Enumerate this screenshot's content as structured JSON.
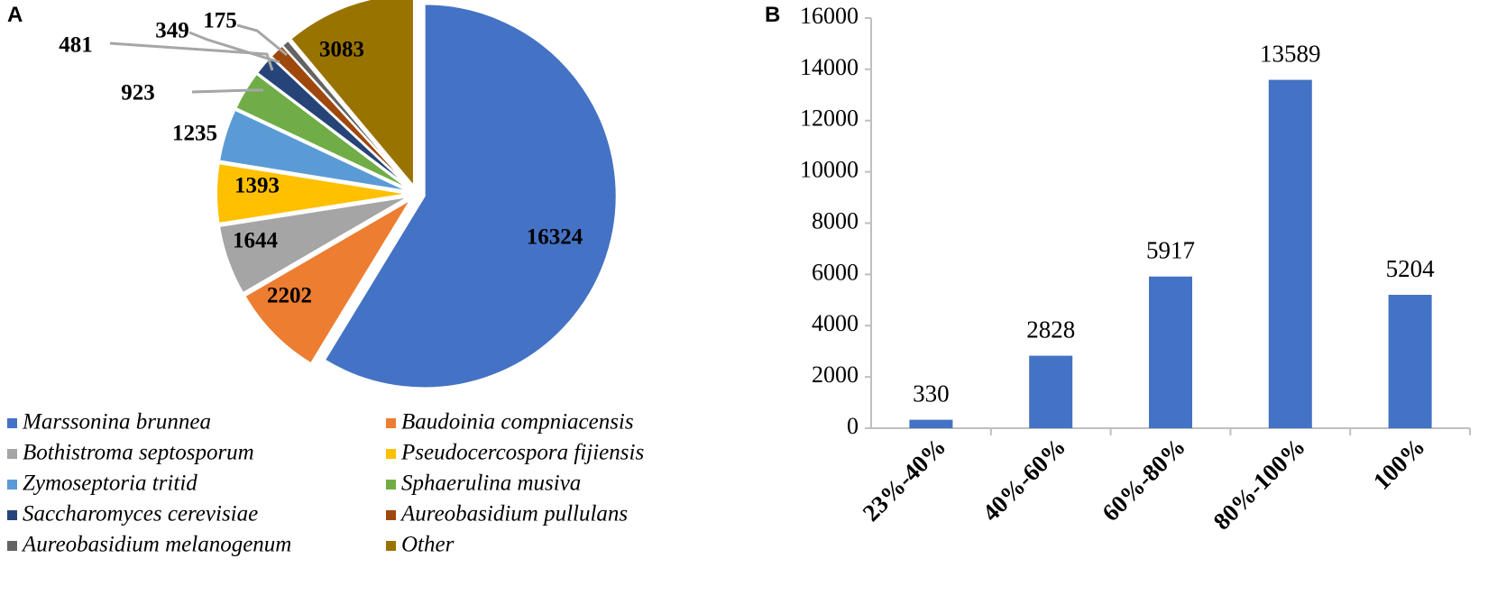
{
  "panels": {
    "left_letter": "A",
    "right_letter": "B"
  },
  "chart_data": [
    {
      "type": "pie",
      "title": "",
      "slices": [
        {
          "label": "Marssonina brunnea",
          "value": 16324,
          "value_label": "16324",
          "color": "#4472C4"
        },
        {
          "label": "Baudoinia compniacensis",
          "value": 2202,
          "value_label": "2202",
          "color": "#ED7D31"
        },
        {
          "label": "Bothistroma septosporum",
          "value": 1644,
          "value_label": "1644",
          "color": "#A5A5A5"
        },
        {
          "label": "Pseudocercospora fijiensis",
          "value": 1393,
          "value_label": "1393",
          "color": "#FFC000"
        },
        {
          "label": "Zymoseptoria tritid",
          "value": 1235,
          "value_label": "1235",
          "color": "#5B9BD5"
        },
        {
          "label": "Sphaerulina musiva",
          "value": 923,
          "value_label": "923",
          "color": "#70AD47"
        },
        {
          "label": "Saccharomyces cerevisiae",
          "value": 481,
          "value_label": "481",
          "color": "#264478"
        },
        {
          "label": "Aureobasidium pullulans",
          "value": 349,
          "value_label": "349",
          "color": "#9E480E"
        },
        {
          "label": "Aureobasidium melanogenum",
          "value": 175,
          "value_label": "175",
          "color": "#636363"
        },
        {
          "label": "Other",
          "value": 3083,
          "value_label": "3083",
          "color": "#997300"
        }
      ],
      "legend_position": "bottom",
      "exploded": true
    },
    {
      "type": "bar",
      "title": "",
      "xlabel": "",
      "ylabel": "",
      "categories": [
        "23%-40%",
        "40%-60%",
        "60%-80%",
        "80%-100%",
        "100%"
      ],
      "values": [
        330,
        2828,
        5917,
        13589,
        5204
      ],
      "value_labels": [
        "330",
        "2828",
        "5917",
        "13589",
        "5204"
      ],
      "ylim": [
        0,
        16000
      ],
      "yticks": [
        "0",
        "2000",
        "4000",
        "6000",
        "8000",
        "10000",
        "12000",
        "14000",
        "16000"
      ],
      "bar_color": "#4472C4",
      "grid": false
    }
  ]
}
